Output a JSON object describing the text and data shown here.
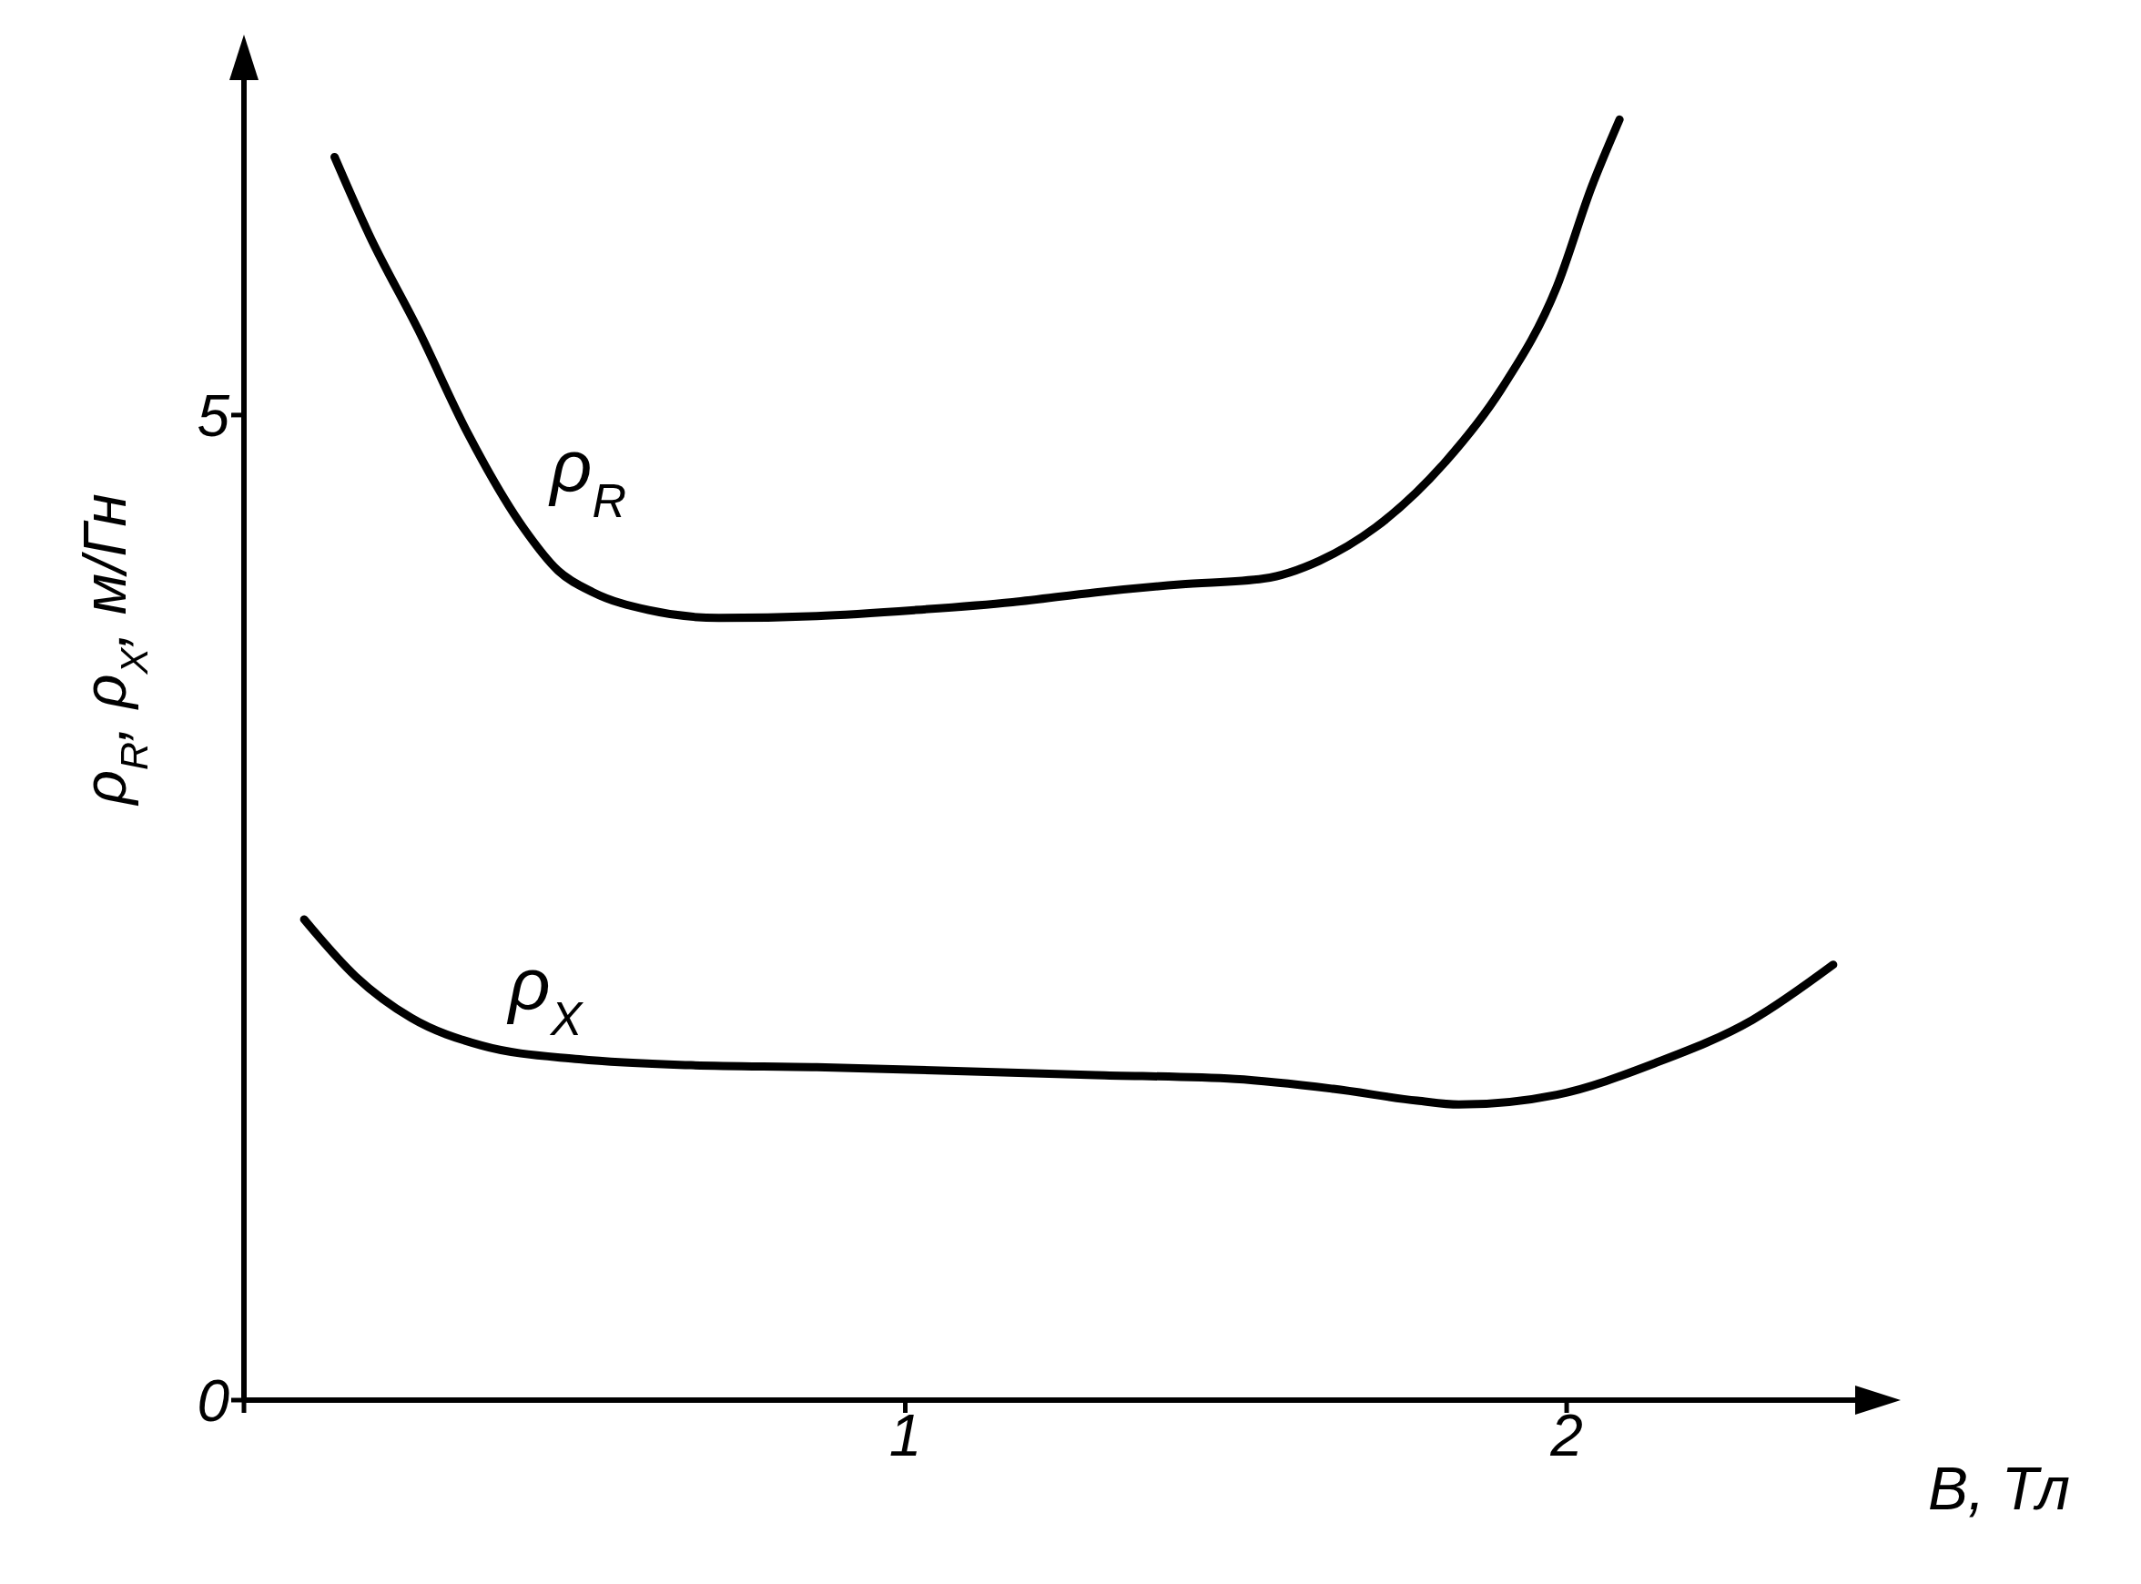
{
  "chart_data": {
    "type": "line",
    "xlabel": "B, Тл",
    "ylabel": "ρ$_{R}$, ρ$_{X}$, м/Гн",
    "xlim": [
      0,
      2.45
    ],
    "xticks": [
      {
        "value": 0,
        "label": null
      },
      1,
      2
    ],
    "ylim": [
      0,
      6.7
    ],
    "yticks": [
      0,
      5
    ],
    "grid": false,
    "legend": false,
    "marker": "none",
    "line_style": "solid",
    "series": [
      {
        "name": "ρ$_{R}$",
        "color": "#000000",
        "x": [
          0.137,
          0.19,
          0.264,
          0.338,
          0.422,
          0.475,
          0.528,
          0.612,
          0.718,
          0.866,
          1.014,
          1.162,
          1.288,
          1.415,
          1.542,
          1.626,
          1.711,
          1.816,
          1.901,
          1.985,
          2.038,
          2.08
        ],
        "values": [
          6.31,
          5.91,
          5.43,
          4.91,
          4.43,
          4.21,
          4.1,
          4.01,
          3.97,
          3.98,
          4.01,
          4.05,
          4.1,
          4.14,
          4.17,
          4.26,
          4.43,
          4.76,
          5.13,
          5.65,
          6.16,
          6.5
        ]
      },
      {
        "name": "ρ$_{X}$",
        "color": "#000000",
        "x": [
          0.091,
          0.169,
          0.253,
          0.359,
          0.507,
          0.676,
          0.866,
          1.077,
          1.288,
          1.499,
          1.647,
          1.774,
          1.837,
          1.985,
          2.133,
          2.281,
          2.403
        ],
        "values": [
          2.44,
          2.15,
          1.94,
          1.8,
          1.73,
          1.7,
          1.69,
          1.67,
          1.65,
          1.63,
          1.58,
          1.52,
          1.5,
          1.55,
          1.71,
          1.93,
          2.21
        ]
      }
    ]
  }
}
